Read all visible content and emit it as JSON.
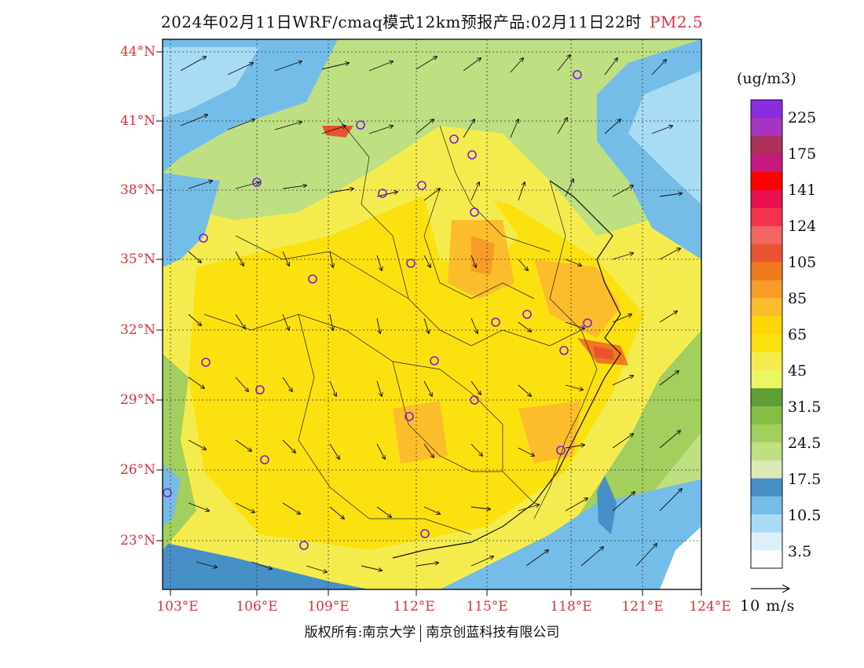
{
  "title": {
    "main": "2024年02月11日WRF/cmaq模式12km预报产品:02月11日22时",
    "pollutant": "PM2.5"
  },
  "lat_labels": [
    "44°N",
    "41°N",
    "38°N",
    "35°N",
    "32°N",
    "29°N",
    "26°N",
    "23°N"
  ],
  "lon_labels": [
    "103°E",
    "106°E",
    "109°E",
    "112°E",
    "115°E",
    "118°E",
    "121°E",
    "124°E"
  ],
  "colorbar": {
    "unit": "(ug/m3)",
    "colors": [
      "#ffffff",
      "#dceffa",
      "#a8dcf5",
      "#74bde8",
      "#468fc7",
      "#dbe9b5",
      "#bedf82",
      "#a2cf5e",
      "#86bd44",
      "#5d9e36",
      "#ecf562",
      "#f4ec4e",
      "#fbe10f",
      "#fed507",
      "#fcbd2c",
      "#f99b27",
      "#ef7a1e",
      "#e95430",
      "#f26562",
      "#f5334f",
      "#e8114e",
      "#ff0000",
      "#c7187f",
      "#ab3159",
      "#a734c0",
      "#8a2ce0"
    ],
    "labels": [
      "3.5",
      "10.5",
      "17.5",
      "24.5",
      "31.5",
      "45",
      "65",
      "85",
      "105",
      "124",
      "141",
      "175",
      "225"
    ]
  },
  "wind_scale_label": "10 m/s",
  "footer": {
    "copyright": "版权所有:南京大学",
    "company": "南京创蓝科技有限公司"
  }
}
